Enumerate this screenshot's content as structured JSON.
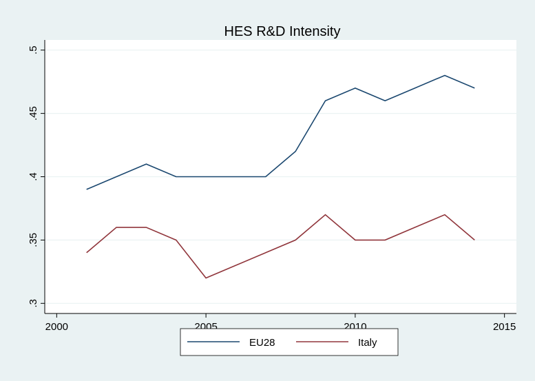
{
  "chart_data": {
    "type": "line",
    "title": "HES R&D Intensity",
    "x": [
      2001,
      2002,
      2003,
      2004,
      2005,
      2006,
      2007,
      2008,
      2009,
      2010,
      2011,
      2012,
      2013,
      2014
    ],
    "series": [
      {
        "name": "EU28",
        "color": "#1a476f",
        "values": [
          0.39,
          0.4,
          0.41,
          0.4,
          0.4,
          0.4,
          0.4,
          0.42,
          0.46,
          0.47,
          0.46,
          0.47,
          0.48,
          0.47
        ]
      },
      {
        "name": "Italy",
        "color": "#90353b",
        "values": [
          0.34,
          0.36,
          0.36,
          0.35,
          0.32,
          0.33,
          0.34,
          0.35,
          0.37,
          0.35,
          0.35,
          0.36,
          0.37,
          0.35
        ]
      }
    ],
    "xlim": [
      1999.6,
      2015.4
    ],
    "xticks": [
      2000,
      2005,
      2010,
      2015
    ],
    "ylim": [
      0.292,
      0.508
    ],
    "yticks": [
      {
        "value": 0.3,
        "label": ".3"
      },
      {
        "value": 0.35,
        "label": ".35"
      },
      {
        "value": 0.4,
        "label": ".4"
      },
      {
        "value": 0.45,
        "label": ".45"
      },
      {
        "value": 0.5,
        "label": ".5"
      }
    ],
    "grid": true,
    "legend": "bottom"
  }
}
